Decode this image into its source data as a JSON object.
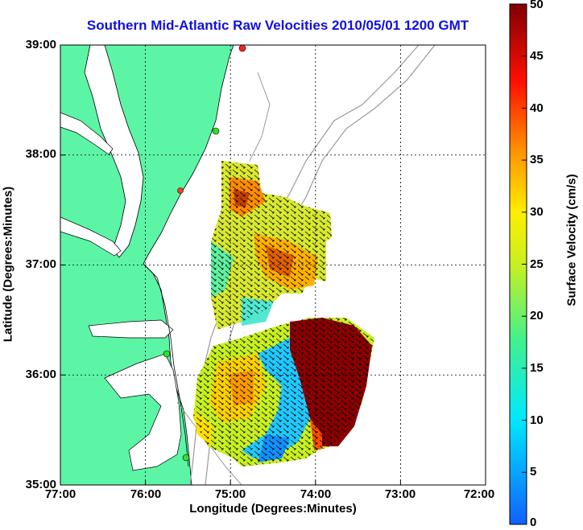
{
  "title": "Southern Mid-Atlantic Raw Velocities 2010/05/01 1200 GMT",
  "xlabel": "Longitude (Degrees:Minutes)",
  "ylabel": "Latitude (Degrees:Minutes)",
  "colorbar_label": "Surface Velocity (cm/s)",
  "x_ticks": [
    "77:00",
    "76:00",
    "75:00",
    "74:00",
    "73:00",
    "72:00"
  ],
  "y_ticks": [
    "39:00",
    "38:00",
    "37:00",
    "36:00",
    "35:00"
  ],
  "colorbar_ticks": [
    "50",
    "45",
    "40",
    "35",
    "30",
    "25",
    "20",
    "15",
    "10",
    "5",
    "0"
  ],
  "colors": {
    "land": "#5cf5a6",
    "title": "#1010e0",
    "bathymetry": "#9a9a9a"
  },
  "map_extent": {
    "lon": [
      -77,
      -72
    ],
    "lat": [
      35,
      39
    ],
    "colorbar_range": [
      0,
      50
    ]
  }
}
